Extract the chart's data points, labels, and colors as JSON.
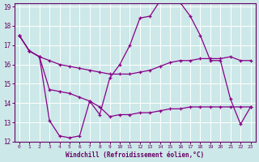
{
  "xlabel": "Windchill (Refroidissement éolien,°C)",
  "background_color": "#cde8e8",
  "grid_color": "#b8d8d8",
  "line_color": "#880088",
  "xmin": 0,
  "xmax": 23,
  "ymin": 12,
  "ymax": 19,
  "x": [
    0,
    1,
    2,
    3,
    4,
    5,
    6,
    7,
    8,
    9,
    10,
    11,
    12,
    13,
    14,
    15,
    16,
    17,
    18,
    19,
    20,
    21,
    22,
    23
  ],
  "line1": [
    17.5,
    16.7,
    16.4,
    16.2,
    16.0,
    15.9,
    15.8,
    15.7,
    15.6,
    15.5,
    15.5,
    15.5,
    15.6,
    15.7,
    15.9,
    16.1,
    16.2,
    16.2,
    16.3,
    16.3,
    16.3,
    16.4,
    16.2,
    16.2
  ],
  "line2": [
    17.5,
    16.7,
    16.4,
    13.1,
    12.3,
    12.2,
    12.3,
    14.1,
    13.4,
    15.3,
    16.0,
    17.0,
    18.4,
    18.5,
    19.3,
    19.3,
    19.2,
    18.5,
    17.5,
    16.2,
    16.2,
    14.2,
    12.9,
    13.8
  ],
  "line3": [
    17.5,
    16.7,
    16.4,
    14.7,
    14.6,
    14.5,
    14.3,
    14.1,
    13.8,
    13.3,
    13.4,
    13.4,
    13.5,
    13.5,
    13.6,
    13.7,
    13.7,
    13.8,
    13.8,
    13.8,
    13.8,
    13.8,
    13.8,
    13.8
  ]
}
